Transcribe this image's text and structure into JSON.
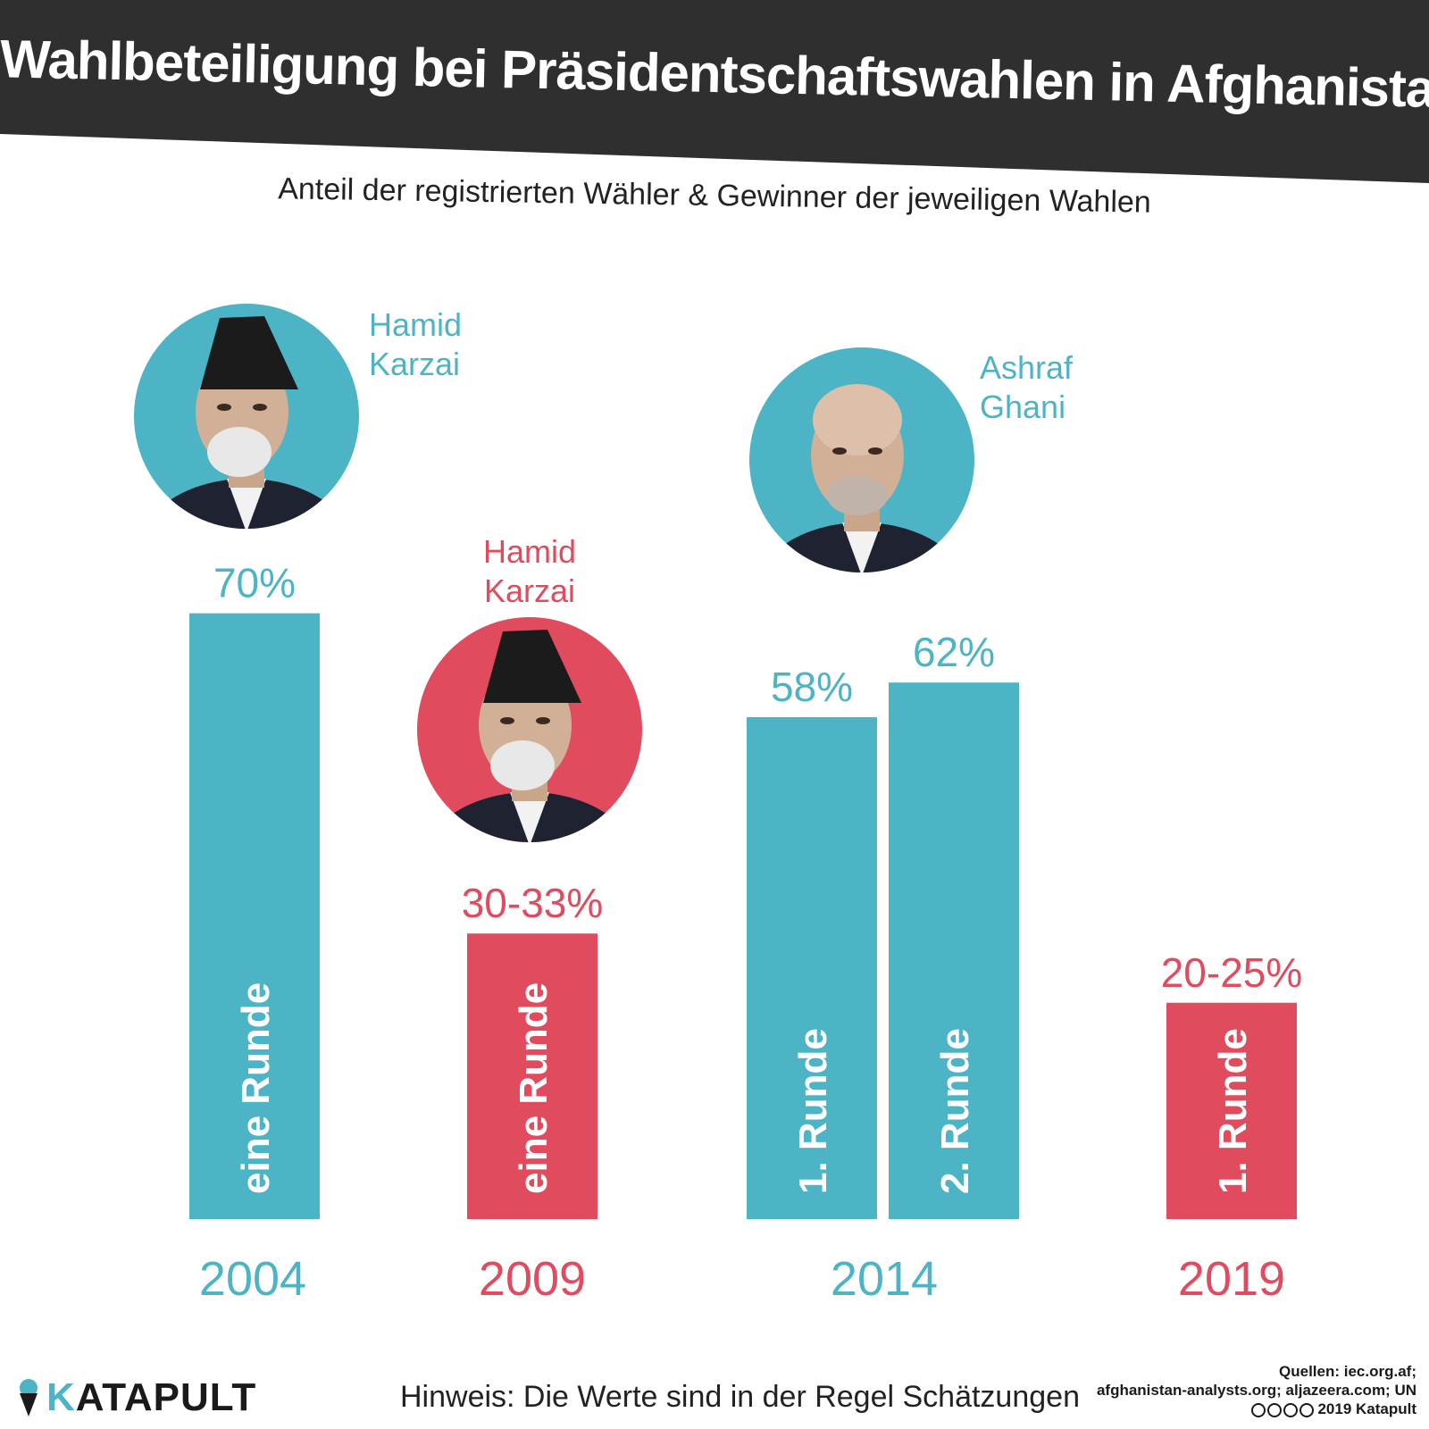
{
  "header": {
    "title": "Wahlbeteiligung bei Präsidentschaftswahlen in Afghanistan",
    "subtitle": "Anteil der registrierten Wähler & Gewinner der jeweiligen Wahlen"
  },
  "colors": {
    "header_bg": "#2f2f2f",
    "teal": "#4cb4c5",
    "red": "#e04b5e"
  },
  "chart_data": {
    "type": "bar",
    "title": "Wahlbeteiligung bei Präsidentschaftswahlen in Afghanistan",
    "subtitle": "Anteil der registrierten Wähler & Gewinner der jeweiligen Wahlen",
    "ylim": [
      0,
      100
    ],
    "grid": false,
    "years": [
      {
        "label": "2004",
        "color": "teal",
        "winner": "Hamid Karzai",
        "winner_lines": [
          "Hamid",
          "Karzai"
        ],
        "portrait": "hamid-karzai-portrait"
      },
      {
        "label": "2009",
        "color": "red",
        "winner": "Hamid Karzai",
        "winner_lines": [
          "Hamid",
          "Karzai"
        ],
        "portrait": "hamid-karzai-portrait"
      },
      {
        "label": "2014",
        "color": "teal",
        "winner": "Ashraf Ghani",
        "winner_lines": [
          "Ashraf",
          "Ghani"
        ],
        "portrait": "ashraf-ghani-portrait"
      },
      {
        "label": "2019",
        "color": "red"
      }
    ],
    "bars": [
      {
        "year": "2004",
        "value": 70,
        "value_label": "70%",
        "round_label": "eine Runde",
        "color": "teal"
      },
      {
        "year": "2009",
        "value": 33,
        "value_range": [
          30,
          33
        ],
        "value_label": "30-33%",
        "round_label": "eine Runde",
        "color": "red"
      },
      {
        "year": "2014",
        "value": 58,
        "value_label": "58%",
        "round_label": "1. Runde",
        "color": "teal"
      },
      {
        "year": "2014",
        "value": 62,
        "value_label": "62%",
        "round_label": "2. Runde",
        "color": "teal"
      },
      {
        "year": "2019",
        "value": 25,
        "value_range": [
          20,
          25
        ],
        "value_label": "20-25%",
        "round_label": "1. Runde",
        "color": "red"
      }
    ]
  },
  "footer": {
    "brand": "KATAPULT",
    "note": "Hinweis: Die Werte sind in der Regel Schätzungen",
    "sources_line1": "Quellen: iec.org.af;",
    "sources_line2": "afghanistan-analysts.org; aljazeera.com; UN",
    "copyright": "2019 Katapult"
  }
}
